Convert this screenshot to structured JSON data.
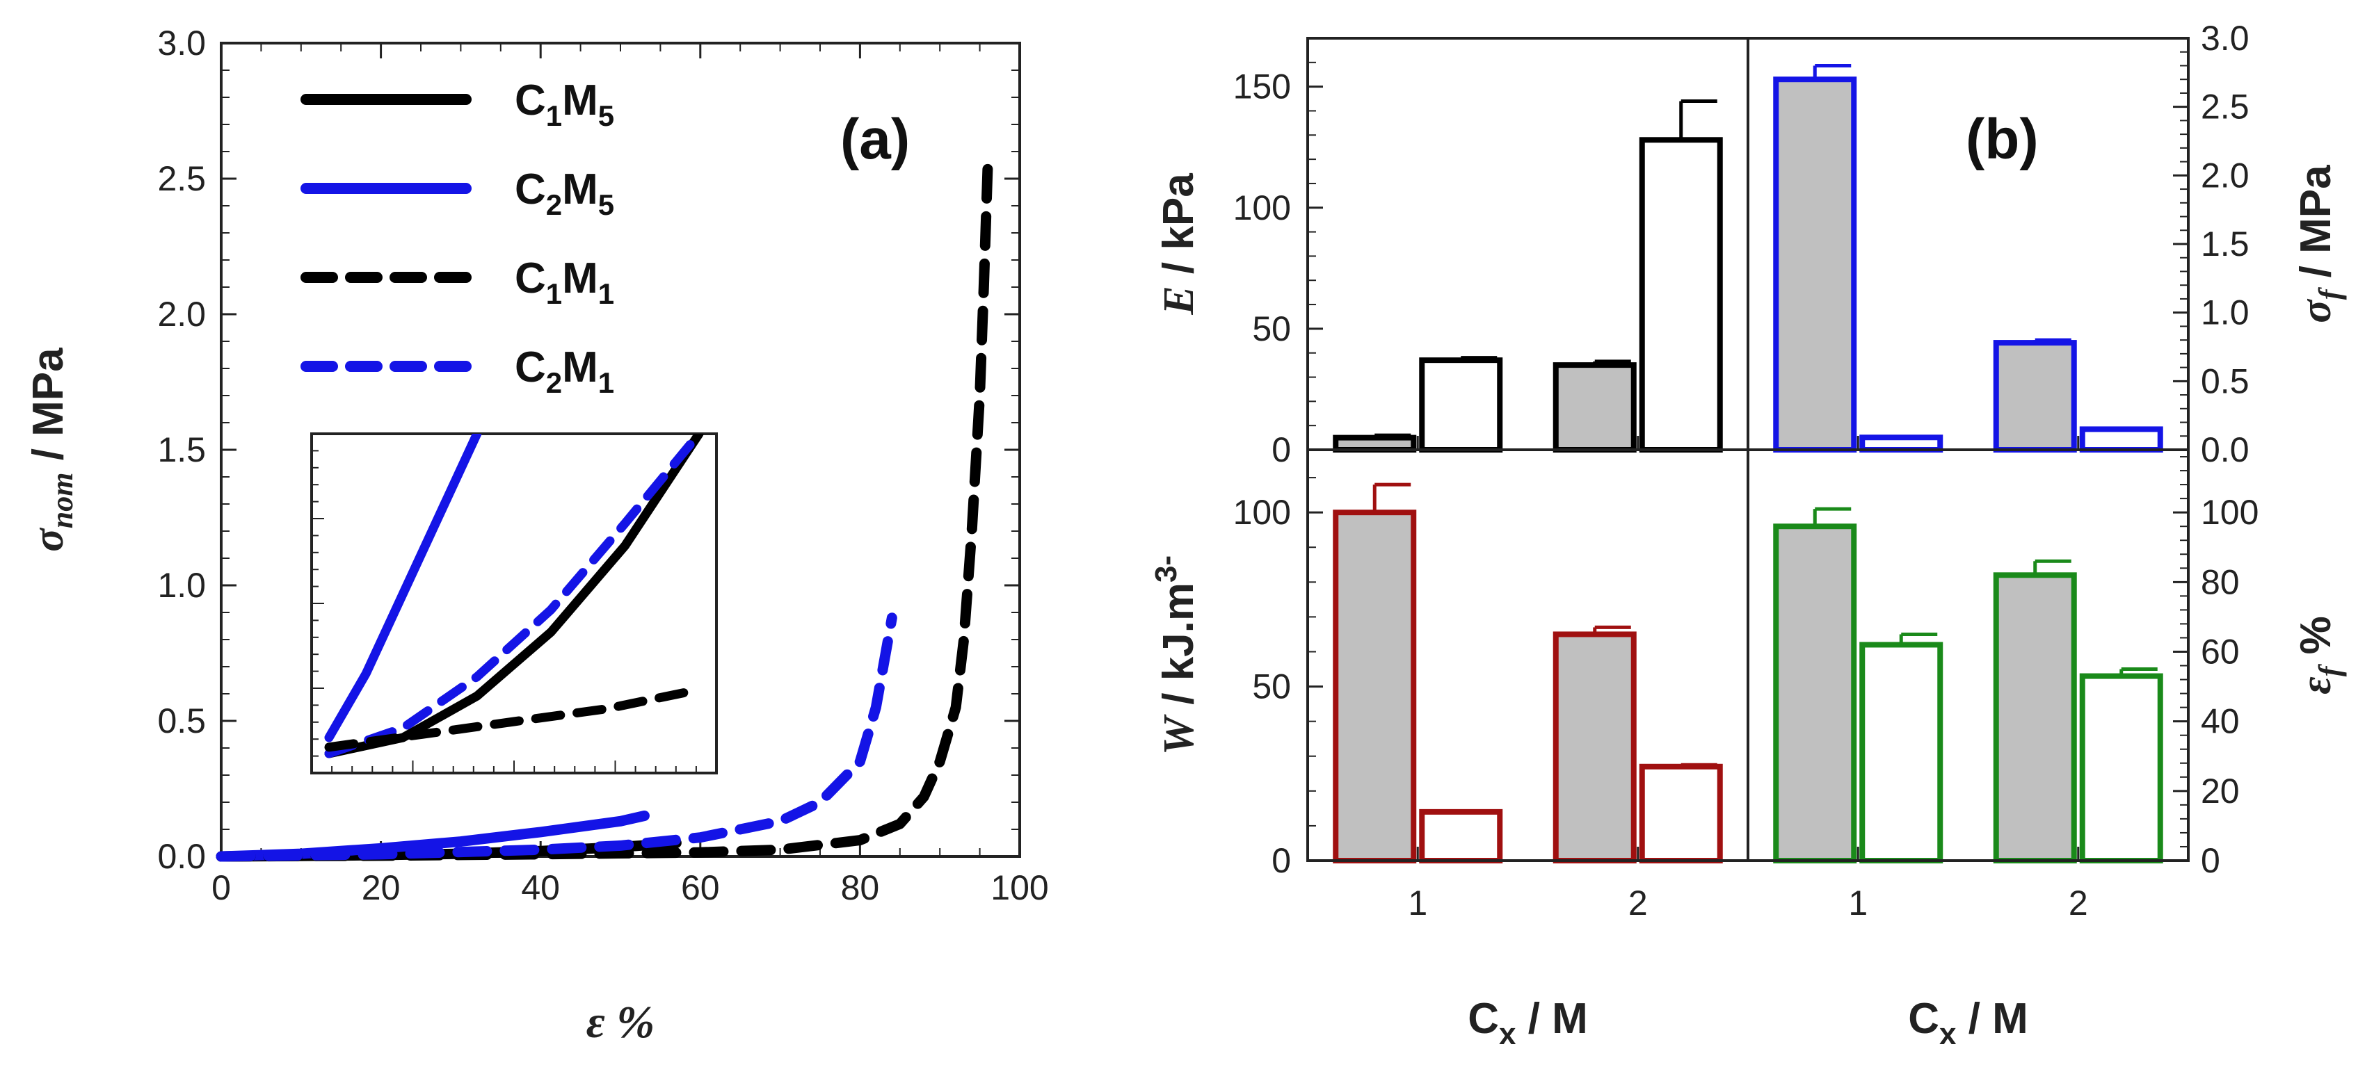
{
  "chart_data": [
    {
      "id": "a",
      "type": "line",
      "panel_label": "(a)",
      "xlabel": "ε %",
      "ylabel": {
        "main": "σ",
        "sub": "nom",
        "rest": " / MPa"
      },
      "xlim": [
        0,
        100
      ],
      "ylim": [
        0,
        3.0
      ],
      "x_ticks": [
        "0",
        "20",
        "40",
        "60",
        "80",
        "100"
      ],
      "x_tick_values": [
        0,
        20,
        40,
        60,
        80,
        100
      ],
      "y_ticks": [
        "0.0",
        "0.5",
        "1.0",
        "1.5",
        "2.0",
        "2.5",
        "3.0"
      ],
      "y_tick_values": [
        0,
        0.5,
        1.0,
        1.5,
        2.0,
        2.5,
        3.0
      ],
      "legend_position": "top-left",
      "series": [
        {
          "name": "C1M5",
          "label": {
            "a": "C",
            "s1": "1",
            "b": "M",
            "s2": "5"
          },
          "color": "#000000",
          "style": "solid",
          "x": [
            0,
            10,
            20,
            30,
            40,
            50,
            55,
            57
          ],
          "y": [
            0,
            0.002,
            0.005,
            0.01,
            0.02,
            0.035,
            0.045,
            0.05
          ]
        },
        {
          "name": "C2M5",
          "label": {
            "a": "C",
            "s1": "2",
            "b": "M",
            "s2": "5"
          },
          "color": "#1414e6",
          "style": "solid",
          "x": [
            0,
            10,
            20,
            30,
            40,
            50,
            53
          ],
          "y": [
            0,
            0.01,
            0.03,
            0.055,
            0.09,
            0.13,
            0.15
          ]
        },
        {
          "name": "C1M1",
          "label": {
            "a": "C",
            "s1": "1",
            "b": "M",
            "s2": "1"
          },
          "color": "#000000",
          "style": "dashed",
          "x": [
            0,
            20,
            40,
            60,
            70,
            80,
            85,
            88,
            90,
            92,
            93,
            94,
            95,
            95.5,
            96
          ],
          "y": [
            0,
            0.003,
            0.008,
            0.015,
            0.025,
            0.06,
            0.12,
            0.22,
            0.35,
            0.55,
            0.8,
            1.2,
            1.7,
            2.1,
            2.55
          ]
        },
        {
          "name": "C2M1",
          "label": {
            "a": "C",
            "s1": "2",
            "b": "M",
            "s2": "1"
          },
          "color": "#1414e6",
          "style": "dashed",
          "x": [
            0,
            20,
            40,
            50,
            60,
            70,
            75,
            80,
            82,
            84
          ],
          "y": [
            0,
            0.008,
            0.025,
            0.04,
            0.07,
            0.13,
            0.2,
            0.35,
            0.55,
            0.88
          ]
        }
      ],
      "inset": {
        "note": "zoomed view of the low-strain region (no tick labels)",
        "series": [
          {
            "name": "C2M5",
            "color": "#1414e6",
            "style": "solid",
            "x": [
              0,
              0.1,
              0.2,
              0.3,
              0.4
            ],
            "y": [
              0.05,
              0.25,
              0.5,
              0.75,
              1.0
            ]
          },
          {
            "name": "C1M5",
            "color": "#000000",
            "style": "solid",
            "x": [
              0,
              0.2,
              0.4,
              0.6,
              0.8,
              1.0
            ],
            "y": [
              0.0,
              0.05,
              0.18,
              0.38,
              0.65,
              1.0
            ]
          },
          {
            "name": "C2M1",
            "color": "#1414e6",
            "style": "dashed",
            "x": [
              0,
              0.2,
              0.4,
              0.6,
              0.8,
              1.0
            ],
            "y": [
              0.0,
              0.08,
              0.24,
              0.45,
              0.72,
              1.0
            ]
          },
          {
            "name": "C1M1",
            "color": "#000000",
            "style": "dashed",
            "x": [
              0,
              0.25,
              0.5,
              0.75,
              1.0
            ],
            "y": [
              0.02,
              0.06,
              0.1,
              0.14,
              0.2
            ]
          }
        ]
      }
    },
    {
      "id": "b1",
      "type": "bar",
      "panel_label": "(b)",
      "ylabel": {
        "main": "E",
        "rest": " / kPa"
      },
      "categories": [
        "1",
        "2"
      ],
      "ylim": [
        0,
        170
      ],
      "y_ticks": [
        "0",
        "50",
        "100",
        "150"
      ],
      "y_tick_values": [
        0,
        50,
        100,
        150
      ],
      "color": "#000000",
      "series": [
        {
          "name": "filled",
          "fill": "#c0c0c0",
          "values": [
            5,
            35
          ],
          "errors": [
            1,
            1.5
          ]
        },
        {
          "name": "open",
          "fill": "#ffffff",
          "values": [
            37,
            128
          ],
          "errors": [
            1,
            16
          ]
        }
      ]
    },
    {
      "id": "b2",
      "type": "bar",
      "ylabel": {
        "main": "σ",
        "sub": "f",
        "rest": " / MPa"
      },
      "categories": [
        "1",
        "2"
      ],
      "ylim": [
        0,
        3.0
      ],
      "y_ticks": [
        "0.0",
        "0.5",
        "1.0",
        "1.5",
        "2.0",
        "2.5",
        "3.0"
      ],
      "y_tick_values": [
        0,
        0.5,
        1.0,
        1.5,
        2.0,
        2.5,
        3.0
      ],
      "color": "#1414e6",
      "series": [
        {
          "name": "filled",
          "fill": "#c0c0c0",
          "values": [
            2.7,
            0.78
          ],
          "errors": [
            0.1,
            0.02
          ]
        },
        {
          "name": "open",
          "fill": "#ffffff",
          "values": [
            0.09,
            0.15
          ],
          "errors": [
            0,
            0
          ]
        }
      ]
    },
    {
      "id": "b3",
      "type": "bar",
      "ylabel": {
        "main": "W",
        "rest": " / kJ.m",
        "sup": "3-"
      },
      "xlabel": {
        "a": "C",
        "sub": "x",
        "rest": " / M"
      },
      "categories": [
        "1",
        "2"
      ],
      "ylim": [
        0,
        118
      ],
      "y_ticks": [
        "0",
        "50",
        "100"
      ],
      "y_tick_values": [
        0,
        50,
        100
      ],
      "color": "#a01010",
      "series": [
        {
          "name": "filled",
          "fill": "#c0c0c0",
          "values": [
            100,
            65
          ],
          "errors": [
            8,
            2
          ]
        },
        {
          "name": "open",
          "fill": "#ffffff",
          "values": [
            14,
            27
          ],
          "errors": [
            0,
            0.5
          ]
        }
      ]
    },
    {
      "id": "b4",
      "type": "bar",
      "ylabel": {
        "main": "ε",
        "sub": "f",
        "rest": " %"
      },
      "xlabel": {
        "a": "C",
        "sub": "x",
        "rest": " / M"
      },
      "categories": [
        "1",
        "2"
      ],
      "ylim": [
        0,
        118
      ],
      "y_ticks": [
        "0",
        "20",
        "40",
        "60",
        "80",
        "100"
      ],
      "y_tick_values": [
        0,
        20,
        40,
        60,
        80,
        100
      ],
      "color": "#1a8a1a",
      "series": [
        {
          "name": "filled",
          "fill": "#c0c0c0",
          "values": [
            96,
            82
          ],
          "errors": [
            5,
            4
          ]
        },
        {
          "name": "open",
          "fill": "#ffffff",
          "values": [
            62,
            53
          ],
          "errors": [
            3,
            2
          ]
        }
      ]
    }
  ]
}
